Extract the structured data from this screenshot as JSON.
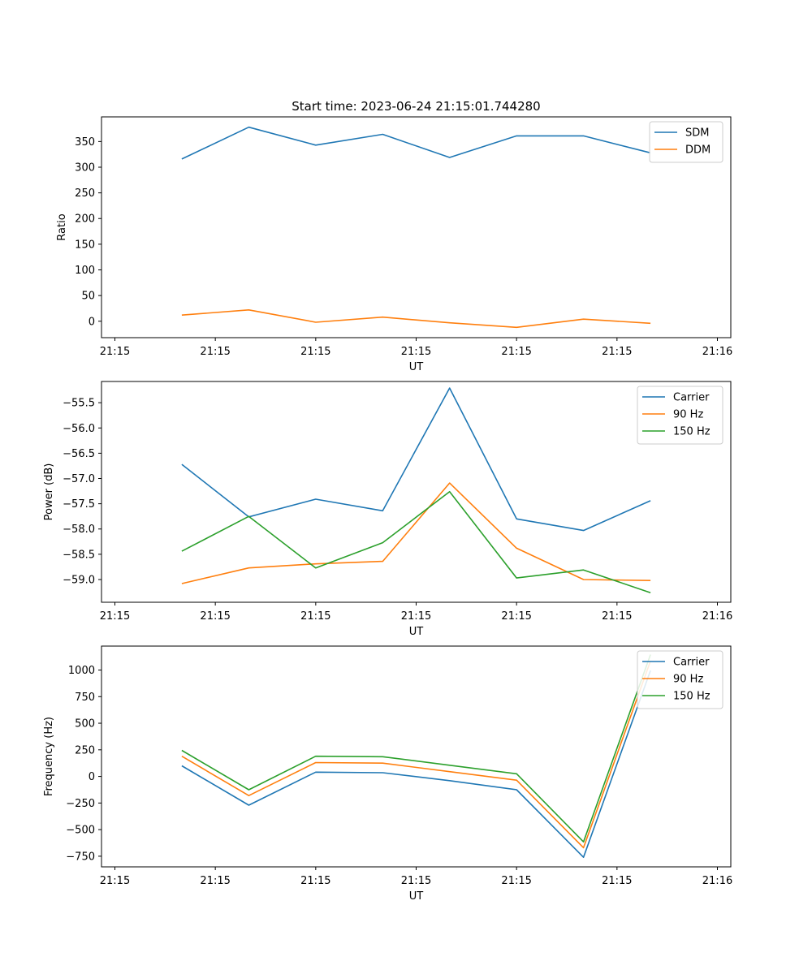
{
  "figure": {
    "title": "Start time: 2023-06-24 21:15:01.744280"
  },
  "chart_data": [
    {
      "type": "line",
      "title": "Start time: 2023-06-24 21:15:01.744280",
      "xlabel": "UT",
      "ylabel": "Ratio",
      "x": [
        1,
        2,
        3,
        4,
        5,
        6,
        7,
        8
      ],
      "xlim": [
        -0.2,
        9.2
      ],
      "x_ticks": [
        0,
        1.5,
        3,
        4.5,
        6,
        7.5,
        9
      ],
      "x_tick_labels": [
        "21:15",
        "21:15",
        "21:15",
        "21:15",
        "21:15",
        "21:15",
        "21:16"
      ],
      "ylim": [
        -32,
        398
      ],
      "y_ticks": [
        0,
        50,
        100,
        150,
        200,
        250,
        300,
        350
      ],
      "y_tick_labels": [
        "0",
        "50",
        "100",
        "150",
        "200",
        "250",
        "300",
        "350"
      ],
      "series": [
        {
          "name": "SDM",
          "color": "#1f77b4",
          "values": [
            316,
            378,
            343,
            364,
            319,
            361,
            361,
            328
          ]
        },
        {
          "name": "DDM",
          "color": "#ff7f0e",
          "values": [
            12,
            22,
            -2,
            8,
            -3,
            -12,
            4,
            -4
          ]
        }
      ],
      "legend": "top-right",
      "grid": false
    },
    {
      "type": "line",
      "xlabel": "UT",
      "ylabel": "Power (dB)",
      "x": [
        1,
        2,
        3,
        4,
        5,
        6,
        7,
        8
      ],
      "xlim": [
        -0.2,
        9.2
      ],
      "x_ticks": [
        0,
        1.5,
        3,
        4.5,
        6,
        7.5,
        9
      ],
      "x_tick_labels": [
        "21:15",
        "21:15",
        "21:15",
        "21:15",
        "21:15",
        "21:15",
        "21:16"
      ],
      "ylim": [
        -59.45,
        -55.08
      ],
      "y_ticks": [
        -59.0,
        -58.5,
        -58.0,
        -57.5,
        -57.0,
        -56.5,
        -56.0,
        -55.5
      ],
      "y_tick_labels": [
        "−59.0",
        "−58.5",
        "−58.0",
        "−57.5",
        "−57.0",
        "−56.5",
        "−56.0",
        "−55.5"
      ],
      "series": [
        {
          "name": "Carrier",
          "color": "#1f77b4",
          "values": [
            -56.72,
            -57.76,
            -57.41,
            -57.64,
            -55.21,
            -57.8,
            -58.03,
            -57.44
          ]
        },
        {
          "name": "90 Hz",
          "color": "#ff7f0e",
          "values": [
            -59.08,
            -58.77,
            -58.69,
            -58.64,
            -57.09,
            -58.38,
            -59.0,
            -59.02
          ]
        },
        {
          "name": "150 Hz",
          "color": "#2ca02c",
          "values": [
            -58.44,
            -57.75,
            -58.77,
            -58.27,
            -57.26,
            -58.97,
            -58.81,
            -59.26
          ]
        }
      ],
      "legend": "top-right",
      "grid": false
    },
    {
      "type": "line",
      "xlabel": "UT",
      "ylabel": "Frequency (Hz)",
      "x": [
        1,
        2,
        3,
        4,
        5,
        6,
        7,
        8
      ],
      "xlim": [
        -0.2,
        9.2
      ],
      "x_ticks": [
        0,
        1.5,
        3,
        4.5,
        6,
        7.5,
        9
      ],
      "x_tick_labels": [
        "21:15",
        "21:15",
        "21:15",
        "21:15",
        "21:15",
        "21:15",
        "21:16"
      ],
      "ylim": [
        -850,
        1225
      ],
      "y_ticks": [
        -750,
        -500,
        -250,
        0,
        250,
        500,
        750,
        1000
      ],
      "y_tick_labels": [
        "−750",
        "−500",
        "−250",
        "0",
        "250",
        "500",
        "750",
        "1000"
      ],
      "series": [
        {
          "name": "Carrier",
          "color": "#1f77b4",
          "values": [
            100,
            -270,
            40,
            35,
            -40,
            -125,
            -760,
            995
          ]
        },
        {
          "name": "90 Hz",
          "color": "#ff7f0e",
          "values": [
            190,
            -180,
            130,
            125,
            45,
            -35,
            -670,
            1085
          ]
        },
        {
          "name": "150 Hz",
          "color": "#2ca02c",
          "values": [
            245,
            -125,
            190,
            185,
            105,
            25,
            -615,
            1145
          ]
        }
      ],
      "legend": "top-right",
      "grid": false
    }
  ]
}
